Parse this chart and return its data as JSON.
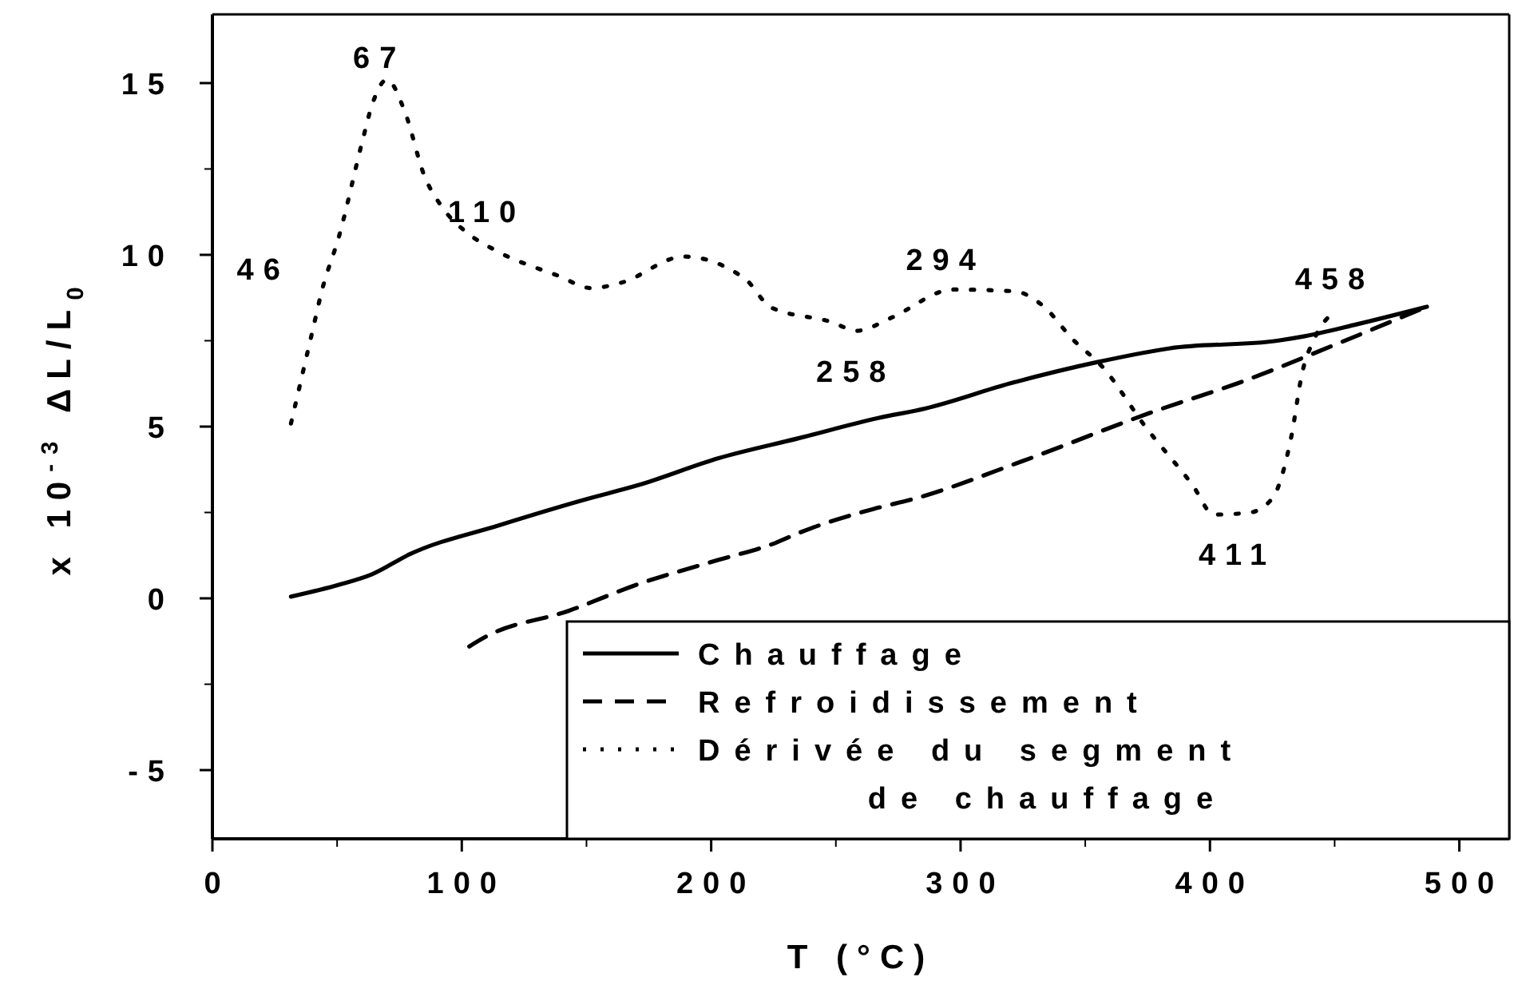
{
  "chart_data": {
    "type": "line",
    "xlabel": "T (°C)",
    "ylabel": "x 10$^{-3}$ ΔL/L$_{0}$",
    "xlim": [
      0,
      520
    ],
    "xticks": [
      0,
      100,
      200,
      300,
      400,
      500
    ],
    "ylim": [
      -7,
      17
    ],
    "yticks": [
      -5,
      0,
      5,
      10,
      15
    ],
    "grid": false,
    "legend": "bottom right",
    "series": [
      {
        "name": "Chauffage",
        "color": "#000000",
        "line_style": "solid",
        "x": [
          31.5,
          51,
          64,
          79,
          115,
          149.5,
          171,
          203,
          235,
          267,
          286,
          320,
          355,
          384,
          427,
          438,
          459,
          487
        ],
        "values": [
          0.05,
          0.4,
          0.7,
          1.28,
          2.13,
          2.88,
          3.3,
          4.08,
          4.66,
          5.25,
          5.53,
          6.26,
          6.88,
          7.28,
          7.5,
          7.63,
          7.98,
          8.49
        ]
      },
      {
        "name": "Refroidissement",
        "color": "#000000",
        "line_style": "dashed",
        "x": [
          103,
          109,
          143,
          171,
          203,
          226,
          235,
          265,
          282,
          325,
          376,
          416,
          449,
          487
        ],
        "values": [
          -1.4,
          -1.14,
          -0.36,
          0.42,
          1.12,
          1.62,
          1.9,
          2.6,
          2.91,
          4.0,
          5.4,
          6.39,
          7.35,
          8.49
        ]
      },
      {
        "name": "Dérivée du segment de chauffage",
        "color": "#000000",
        "line_style": "dotted",
        "x": [
          31.5,
          40.5,
          43.7,
          51,
          60,
          64,
          70,
          77,
          85,
          92,
          102,
          113,
          139,
          152,
          164,
          189,
          213.6,
          224,
          248,
          258.5,
          272,
          297,
          321.5,
          333,
          345,
          357,
          374,
          393,
          401.6,
          415.5,
          425,
          432.6,
          437,
          442,
          450
        ],
        "values": [
          5.09,
          7.9,
          8.9,
          10.6,
          13.27,
          14.36,
          15.1,
          14.2,
          12.3,
          11.4,
          10.65,
          10.15,
          9.38,
          9.03,
          9.19,
          9.95,
          9.3,
          8.47,
          8.05,
          7.79,
          8.16,
          8.99,
          8.94,
          8.52,
          7.54,
          6.73,
          5.01,
          3.3,
          2.44,
          2.49,
          2.91,
          4.7,
          6.57,
          7.58,
          8.36
        ]
      }
    ],
    "annotations": [
      {
        "text": "46",
        "x": 46,
        "y": 9.6
      },
      {
        "text": "67",
        "x": 67,
        "y": 14.8
      },
      {
        "text": "110",
        "x": 110,
        "y": 10.3
      },
      {
        "text": "258",
        "x": 258,
        "y": 7.8
      },
      {
        "text": "294",
        "x": 294,
        "y": 8.9
      },
      {
        "text": "411",
        "x": 411,
        "y": 2.47
      },
      {
        "text": "458",
        "x": 450,
        "y": 8.36
      }
    ]
  }
}
